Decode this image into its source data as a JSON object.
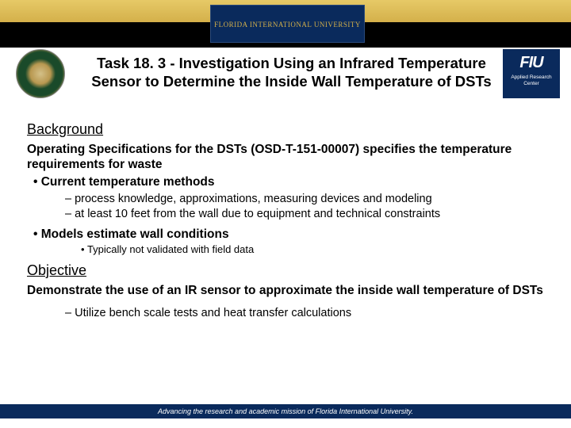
{
  "colors": {
    "gold": "#d4b04a",
    "blue": "#0a2a5c",
    "black": "#000000",
    "white": "#ffffff"
  },
  "banner": {
    "university": "FLORIDA INTERNATIONAL UNIVERSITY"
  },
  "logoRight": {
    "main": "FIU",
    "sub": "Applied Research Center"
  },
  "title": "Task 18. 3 - Investigation Using an Infrared Temperature Sensor to Determine the Inside Wall Temperature of DSTs",
  "sections": {
    "background": {
      "heading": "Background",
      "intro": "Operating Specifications for the DSTs (OSD-T-151-00007) specifies the temperature requirements for waste",
      "b1": "Current temperature methods",
      "b1s1": "process knowledge, approximations, measuring devices and modeling",
      "b1s2": "at least 10 feet from the wall due to equipment and technical constraints",
      "b2": "Models estimate wall conditions",
      "b2s1": "Typically not validated with field data"
    },
    "objective": {
      "heading": "Objective",
      "intro": "Demonstrate the use of an IR sensor to approximate the inside wall temperature of DSTs",
      "s1": "Utilize bench scale tests and heat transfer calculations"
    }
  },
  "footer": "Advancing the research and academic mission of Florida International University."
}
